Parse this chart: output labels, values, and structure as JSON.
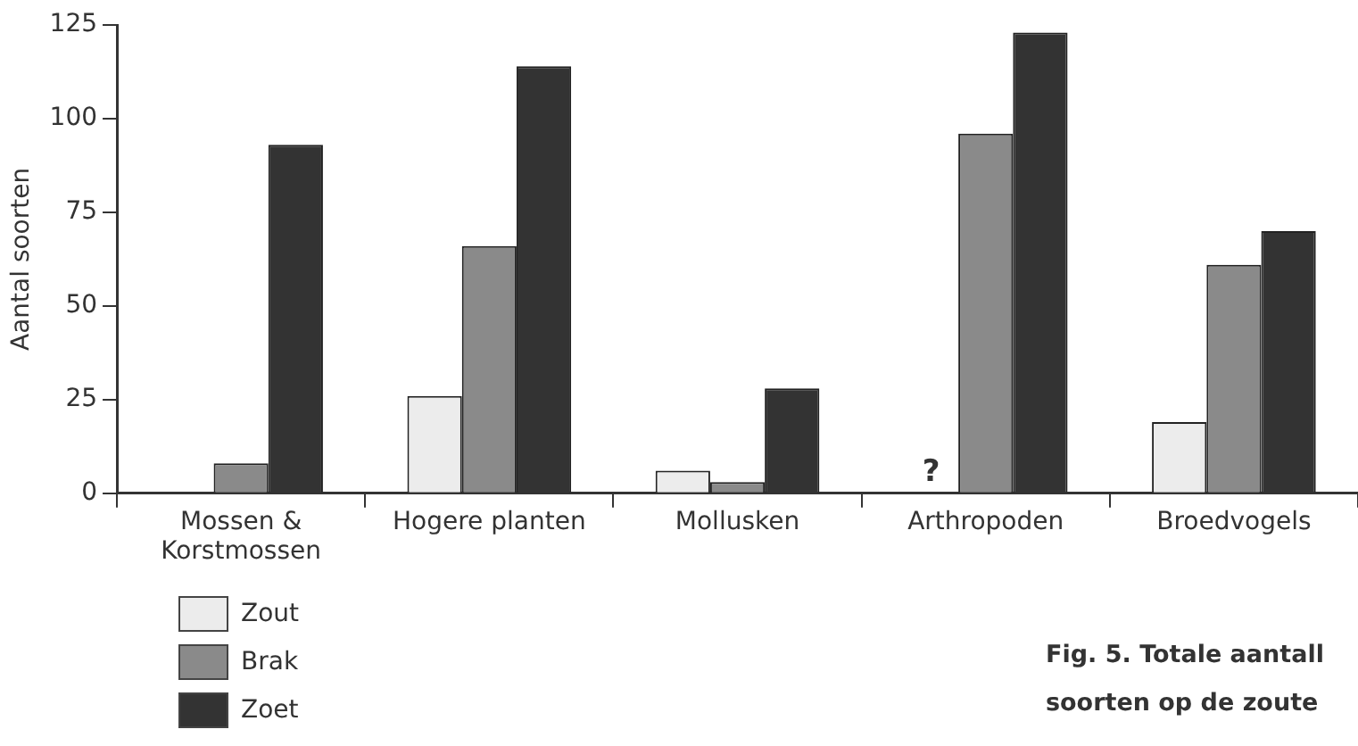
{
  "chart_data": {
    "type": "bar",
    "ylabel": "Aantal soorten",
    "categories": [
      "Mossen & Korstmossen",
      "Hogere planten",
      "Mollusken",
      "Arthropoden",
      "Broedvogels"
    ],
    "series": [
      {
        "name": "Zout",
        "color": "#ececec",
        "values": [
          0,
          26,
          6,
          null,
          19
        ]
      },
      {
        "name": "Brak",
        "color": "#8a8a8a",
        "values": [
          8,
          66,
          3,
          96,
          61
        ]
      },
      {
        "name": "Zoet",
        "color": "#333333",
        "values": [
          93,
          114,
          28,
          123,
          70
        ]
      }
    ],
    "ylim": [
      0,
      125
    ],
    "yticks": [
      0,
      25,
      50,
      75,
      100,
      125
    ],
    "grid": false,
    "legend": "bottom left",
    "annotations": [
      {
        "text": "?",
        "x": "Arthropoden",
        "y": 0
      },
      "Fig. 5. Totale aantall soorten op de zoute"
    ]
  }
}
